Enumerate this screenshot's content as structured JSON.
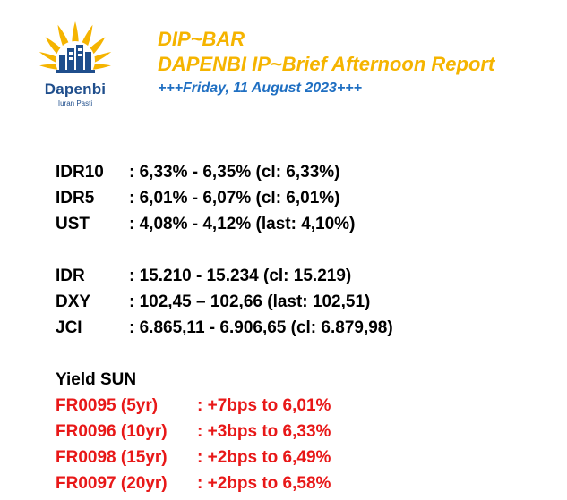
{
  "brand": {
    "name": "Dapenbi",
    "tagline": "Iuran Pasti",
    "colors": {
      "petal": "#f5b400",
      "navy": "#1f4e8c"
    },
    "logo_icon": "sun-buildings-logo"
  },
  "header": {
    "title": "DIP~BAR",
    "subtitle": "DAPENBI IP~Brief Afternoon Report",
    "date_line": "+++Friday, 11 August 2023+++"
  },
  "markets_rates": [
    {
      "label": "IDR10",
      "value": ": 6,33% - 6,35% (cl: 6,33%)"
    },
    {
      "label": "IDR5",
      "value": ": 6,01% - 6,07% (cl: 6,01%)"
    },
    {
      "label": "UST",
      "value": ": 4,08% - 4,12% (last: 4,10%)"
    }
  ],
  "markets_fx": [
    {
      "label": "IDR",
      "value": ": 15.210 - 15.234 (cl: 15.219)"
    },
    {
      "label": "DXY",
      "value": ": 102,45 – 102,66 (last: 102,51)"
    },
    {
      "label": "JCI",
      "value": ":  6.865,11 - 6.906,65 (cl: 6.879,98)"
    }
  ],
  "yield_sun": {
    "title": "Yield SUN",
    "color": "#e81818",
    "items": [
      {
        "label": "FR0095 (5yr)",
        "value": ": +7bps to 6,01%"
      },
      {
        "label": "FR0096 (10yr)",
        "value": ": +3bps to 6,33%"
      },
      {
        "label": "FR0098 (15yr)",
        "value": ": +2bps to 6,49%"
      },
      {
        "label": "FR0097 (20yr)",
        "value": ": +2bps to 6,58%"
      }
    ]
  }
}
